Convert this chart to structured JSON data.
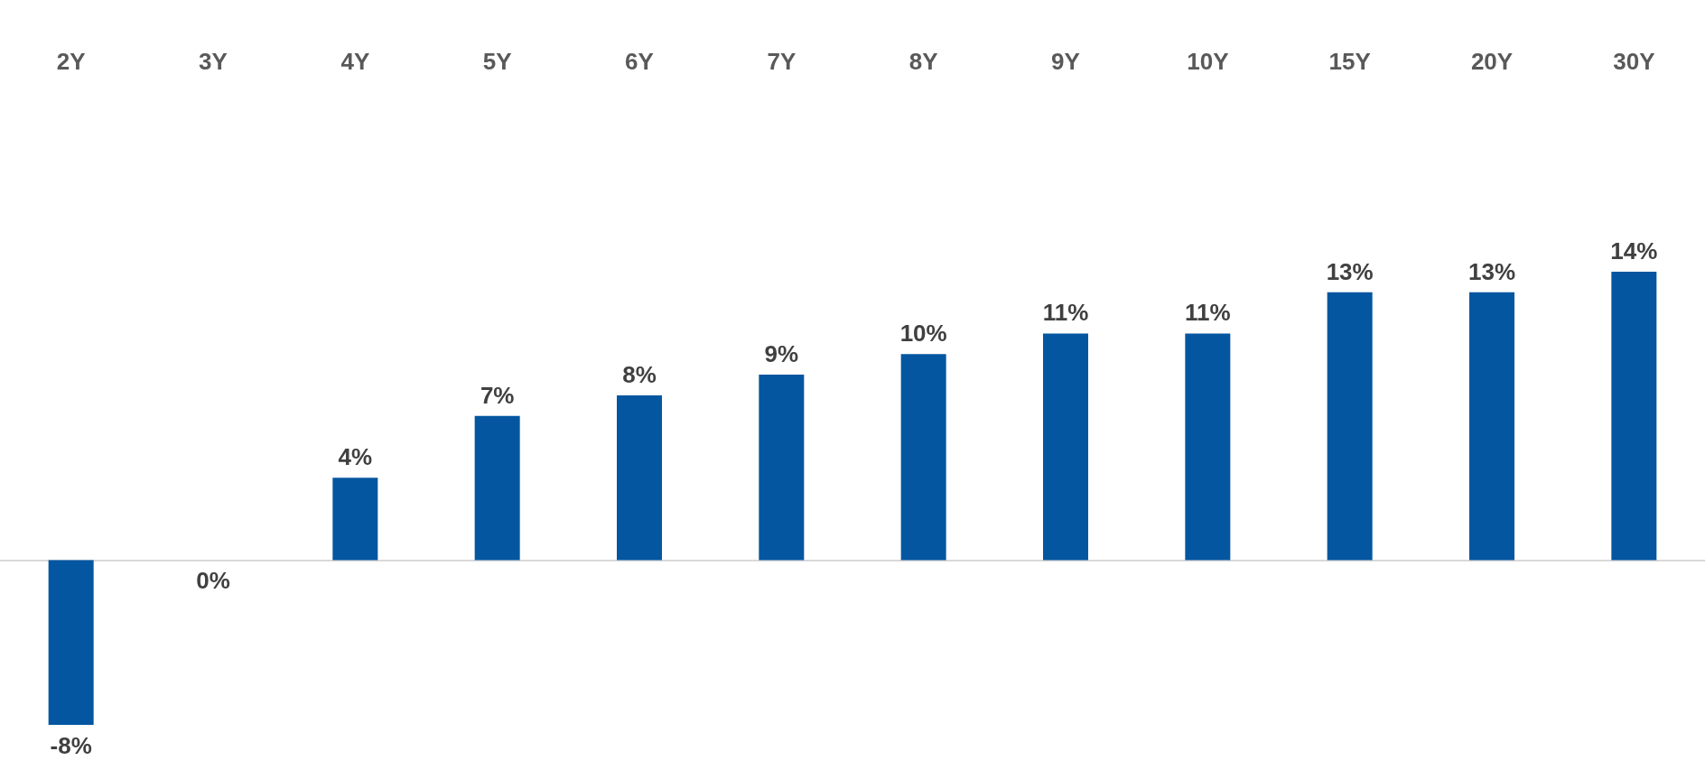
{
  "chart_data": {
    "type": "bar",
    "categories": [
      "2Y",
      "3Y",
      "4Y",
      "5Y",
      "6Y",
      "7Y",
      "8Y",
      "9Y",
      "10Y",
      "15Y",
      "20Y",
      "30Y"
    ],
    "values": [
      -8,
      0,
      4,
      7,
      8,
      9,
      10,
      11,
      11,
      13,
      13,
      14
    ],
    "value_labels": [
      "-8%",
      "0%",
      "4%",
      "7%",
      "8%",
      "9%",
      "10%",
      "11%",
      "11%",
      "13%",
      "13%",
      "14%"
    ],
    "color": "#0456a0"
  }
}
